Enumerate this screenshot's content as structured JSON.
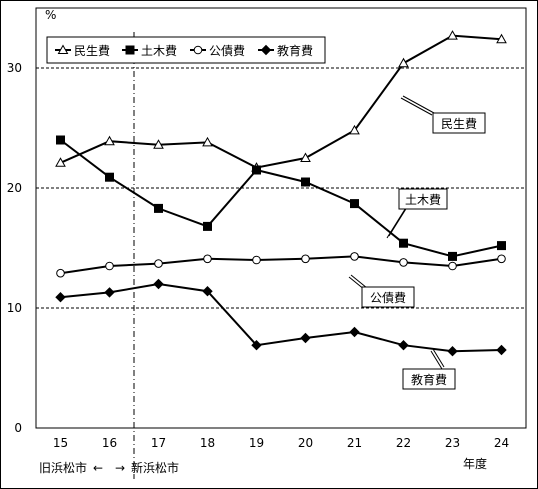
{
  "chart_data": {
    "type": "line",
    "y_unit": "%",
    "xlabel": "年度",
    "ylim": [
      0,
      35
    ],
    "y_ticks": [
      0,
      10,
      20,
      30
    ],
    "categories": [
      "15",
      "16",
      "17",
      "18",
      "19",
      "20",
      "21",
      "22",
      "23",
      "24"
    ],
    "gridlines": [
      10,
      20,
      30
    ],
    "boundary_note": {
      "after_category": "16",
      "left_label": "旧浜松市",
      "arrow_text": "←　→",
      "right_label": "新浜松市"
    },
    "series": [
      {
        "name": "民生費",
        "marker": "triangle-open",
        "values": [
          22.1,
          23.9,
          23.6,
          23.8,
          21.7,
          22.5,
          24.8,
          30.4,
          32.7,
          32.4
        ]
      },
      {
        "name": "土木費",
        "marker": "square-filled",
        "values": [
          24.0,
          20.9,
          18.3,
          16.8,
          21.5,
          20.5,
          18.7,
          15.4,
          14.3,
          15.2
        ]
      },
      {
        "name": "公債費",
        "marker": "circle-open",
        "values": [
          12.9,
          13.5,
          13.7,
          14.1,
          14.0,
          14.1,
          14.3,
          13.8,
          13.5,
          14.1
        ]
      },
      {
        "name": "教育費",
        "marker": "diamond-filled",
        "values": [
          10.9,
          11.3,
          12.0,
          11.4,
          6.9,
          7.5,
          8.0,
          6.9,
          6.4,
          6.5
        ]
      }
    ],
    "callouts": [
      {
        "series": "民生費",
        "text": "民生費"
      },
      {
        "series": "土木費",
        "text": "土木費"
      },
      {
        "series": "公債費",
        "text": "公債費"
      },
      {
        "series": "教育費",
        "text": "教育費"
      }
    ],
    "legend_position": "top-left"
  }
}
